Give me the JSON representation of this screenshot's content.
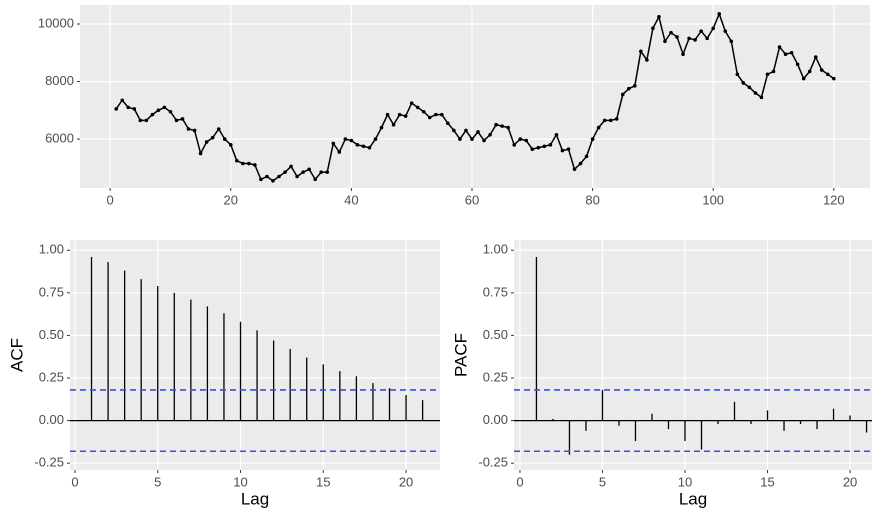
{
  "chart_data": [
    {
      "type": "line",
      "color": "#000000",
      "x": [
        1,
        2,
        3,
        4,
        5,
        6,
        7,
        8,
        9,
        10,
        11,
        12,
        13,
        14,
        15,
        16,
        17,
        18,
        19,
        20,
        21,
        22,
        23,
        24,
        25,
        26,
        27,
        28,
        29,
        30,
        31,
        32,
        33,
        34,
        35,
        36,
        37,
        38,
        39,
        40,
        41,
        42,
        43,
        44,
        45,
        46,
        47,
        48,
        49,
        50,
        51,
        52,
        53,
        54,
        55,
        56,
        57,
        58,
        59,
        60,
        61,
        62,
        63,
        64,
        65,
        66,
        67,
        68,
        69,
        70,
        71,
        72,
        73,
        74,
        75,
        76,
        77,
        78,
        79,
        80,
        81,
        82,
        83,
        84,
        85,
        86,
        87,
        88,
        89,
        90,
        91,
        92,
        93,
        94,
        95,
        96,
        97,
        98,
        99,
        100,
        101,
        102,
        103,
        104,
        105,
        106,
        107,
        108,
        109,
        110,
        111,
        112,
        113,
        114,
        115,
        116,
        117,
        118,
        119,
        120
      ],
      "values": [
        7050,
        7350,
        7100,
        7050,
        6650,
        6650,
        6850,
        7000,
        7100,
        6950,
        6650,
        6700,
        6350,
        6300,
        5500,
        5900,
        6050,
        6350,
        6000,
        5800,
        5250,
        5150,
        5150,
        5100,
        4600,
        4700,
        4550,
        4700,
        4850,
        5050,
        4700,
        4850,
        4950,
        4600,
        4850,
        4850,
        5850,
        5550,
        6000,
        5950,
        5800,
        5750,
        5700,
        6000,
        6400,
        6850,
        6500,
        6850,
        6800,
        7250,
        7100,
        6950,
        6750,
        6850,
        6850,
        6550,
        6300,
        6000,
        6300,
        6000,
        6250,
        5950,
        6150,
        6500,
        6450,
        6400,
        5800,
        6000,
        5950,
        5650,
        5700,
        5750,
        5800,
        6150,
        5600,
        5650,
        4950,
        5150,
        5400,
        6000,
        6400,
        6650,
        6650,
        6700,
        7550,
        7750,
        7850,
        9050,
        8750,
        9850,
        10250,
        9400,
        9700,
        9550,
        8950,
        9500,
        9450,
        9750,
        9500,
        9850,
        10350,
        9750,
        9400,
        8250,
        7950,
        7800,
        7600,
        7450,
        8250,
        8350,
        9200,
        8950,
        9000,
        8600,
        8100,
        8350,
        8850,
        8400,
        8250,
        8100
      ],
      "xlim": [
        -5,
        126
      ],
      "xticks": [
        0,
        20,
        40,
        60,
        80,
        100,
        120
      ],
      "ylim": [
        4300,
        10660
      ],
      "yticks": [
        6000,
        8000,
        10000
      ],
      "grid": true
    },
    {
      "type": "stem",
      "ylabel": "ACF",
      "xlabel": "Lag",
      "color": "#000000",
      "x": [
        1,
        2,
        3,
        4,
        5,
        6,
        7,
        8,
        9,
        10,
        11,
        12,
        13,
        14,
        15,
        16,
        17,
        18,
        19,
        20,
        21
      ],
      "values": [
        0.96,
        0.93,
        0.88,
        0.83,
        0.79,
        0.75,
        0.71,
        0.67,
        0.63,
        0.58,
        0.53,
        0.47,
        0.42,
        0.37,
        0.33,
        0.29,
        0.26,
        0.22,
        0.19,
        0.15,
        0.12
      ],
      "ci_lines": [
        0.18,
        -0.18
      ],
      "ci_color": "#3b4ee0",
      "xlim": [
        -0.3,
        22.05
      ],
      "xticks": [
        0,
        5,
        10,
        15,
        20
      ],
      "ylim": [
        -0.29,
        1.06
      ],
      "yticks": [
        {
          "value": -0.25,
          "label": "-0.25"
        },
        {
          "value": 0,
          "label": "0.00"
        },
        {
          "value": 0.25,
          "label": "0.25"
        },
        {
          "value": 0.5,
          "label": "0.50"
        },
        {
          "value": 0.75,
          "label": "0.75"
        },
        {
          "value": 1,
          "label": "1.00"
        }
      ],
      "grid": true
    },
    {
      "type": "stem",
      "ylabel": "PACF",
      "xlabel": "Lag",
      "color": "#000000",
      "x": [
        1,
        2,
        3,
        4,
        5,
        6,
        7,
        8,
        9,
        10,
        11,
        12,
        13,
        14,
        15,
        16,
        17,
        18,
        19,
        20,
        21
      ],
      "values": [
        0.96,
        0.01,
        -0.2,
        -0.06,
        0.18,
        -0.03,
        -0.12,
        0.04,
        -0.05,
        -0.12,
        -0.17,
        -0.02,
        0.11,
        -0.02,
        0.06,
        -0.06,
        -0.02,
        -0.05,
        0.07,
        0.03,
        -0.07
      ],
      "ci_lines": [
        0.18,
        -0.18
      ],
      "ci_color": "#3b4ee0",
      "xlim": [
        -0.36,
        21.33
      ],
      "xticks": [
        0,
        5,
        10,
        15,
        20
      ],
      "ylim": [
        -0.29,
        1.06
      ],
      "yticks": [
        {
          "value": -0.25,
          "label": "-0.25"
        },
        {
          "value": 0,
          "label": "0.00"
        },
        {
          "value": 0.25,
          "label": "0.25"
        },
        {
          "value": 0.5,
          "label": "0.50"
        },
        {
          "value": 0.75,
          "label": "0.75"
        },
        {
          "value": 1,
          "label": "1.00"
        }
      ],
      "grid": true
    }
  ]
}
